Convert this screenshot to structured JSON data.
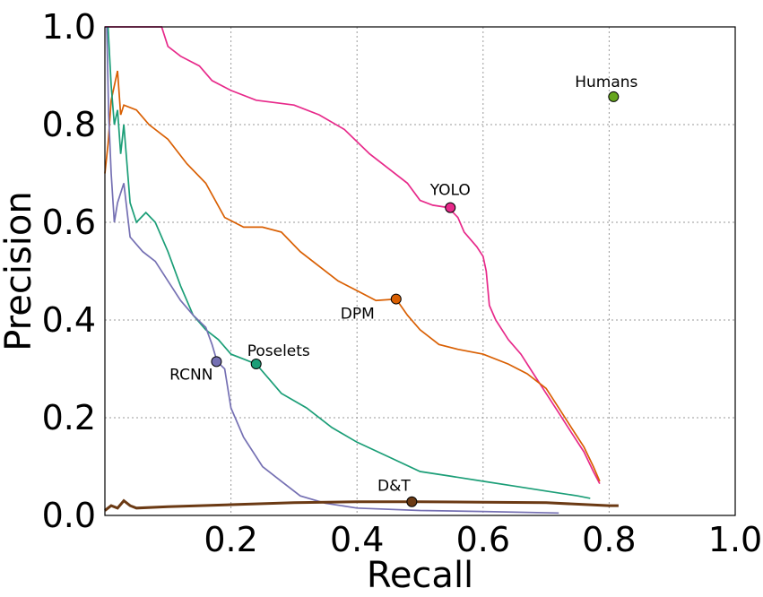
{
  "chart_data": {
    "type": "line",
    "xlabel": "Recall",
    "ylabel": "Precision",
    "xlim": [
      0,
      1
    ],
    "ylim": [
      0,
      1
    ],
    "grid": true,
    "x_ticks": [
      "0.2",
      "0.4",
      "0.6",
      "0.8",
      "1.0"
    ],
    "y_ticks": [
      "0.0",
      "0.2",
      "0.4",
      "0.6",
      "0.8",
      "1.0"
    ],
    "series": [
      {
        "name": "YOLO",
        "color": "#e7298a",
        "points": [
          [
            0.0,
            1.0
          ],
          [
            0.09,
            1.0
          ],
          [
            0.1,
            0.96
          ],
          [
            0.12,
            0.94
          ],
          [
            0.15,
            0.92
          ],
          [
            0.17,
            0.89
          ],
          [
            0.2,
            0.87
          ],
          [
            0.24,
            0.85
          ],
          [
            0.3,
            0.84
          ],
          [
            0.34,
            0.82
          ],
          [
            0.38,
            0.79
          ],
          [
            0.42,
            0.74
          ],
          [
            0.45,
            0.71
          ],
          [
            0.48,
            0.68
          ],
          [
            0.5,
            0.645
          ],
          [
            0.52,
            0.635
          ],
          [
            0.545,
            0.63
          ],
          [
            0.56,
            0.61
          ],
          [
            0.57,
            0.58
          ],
          [
            0.59,
            0.55
          ],
          [
            0.6,
            0.53
          ],
          [
            0.605,
            0.5
          ],
          [
            0.61,
            0.43
          ],
          [
            0.62,
            0.4
          ],
          [
            0.64,
            0.36
          ],
          [
            0.66,
            0.33
          ],
          [
            0.68,
            0.29
          ],
          [
            0.7,
            0.25
          ],
          [
            0.72,
            0.21
          ],
          [
            0.74,
            0.17
          ],
          [
            0.76,
            0.13
          ],
          [
            0.775,
            0.09
          ],
          [
            0.785,
            0.065
          ]
        ],
        "marker": {
          "x": 0.548,
          "y": 0.63,
          "label": "YOLO"
        }
      },
      {
        "name": "DPM",
        "color": "#d95f02",
        "points": [
          [
            0.0,
            0.7
          ],
          [
            0.005,
            0.76
          ],
          [
            0.01,
            0.85
          ],
          [
            0.02,
            0.91
          ],
          [
            0.025,
            0.82
          ],
          [
            0.03,
            0.84
          ],
          [
            0.05,
            0.83
          ],
          [
            0.07,
            0.8
          ],
          [
            0.1,
            0.77
          ],
          [
            0.13,
            0.72
          ],
          [
            0.16,
            0.68
          ],
          [
            0.19,
            0.61
          ],
          [
            0.22,
            0.59
          ],
          [
            0.25,
            0.59
          ],
          [
            0.28,
            0.58
          ],
          [
            0.31,
            0.54
          ],
          [
            0.34,
            0.51
          ],
          [
            0.37,
            0.48
          ],
          [
            0.4,
            0.46
          ],
          [
            0.43,
            0.44
          ],
          [
            0.462,
            0.443
          ],
          [
            0.48,
            0.41
          ],
          [
            0.5,
            0.38
          ],
          [
            0.53,
            0.35
          ],
          [
            0.56,
            0.34
          ],
          [
            0.6,
            0.33
          ],
          [
            0.64,
            0.31
          ],
          [
            0.67,
            0.29
          ],
          [
            0.7,
            0.26
          ],
          [
            0.72,
            0.22
          ],
          [
            0.74,
            0.18
          ],
          [
            0.76,
            0.14
          ],
          [
            0.775,
            0.1
          ],
          [
            0.785,
            0.07
          ]
        ],
        "marker": {
          "x": 0.462,
          "y": 0.443,
          "label": "DPM"
        }
      },
      {
        "name": "Poselets",
        "color": "#1b9e77",
        "points": [
          [
            0.005,
            1.0
          ],
          [
            0.01,
            0.88
          ],
          [
            0.015,
            0.8
          ],
          [
            0.02,
            0.83
          ],
          [
            0.025,
            0.74
          ],
          [
            0.03,
            0.8
          ],
          [
            0.035,
            0.72
          ],
          [
            0.04,
            0.64
          ],
          [
            0.05,
            0.6
          ],
          [
            0.065,
            0.62
          ],
          [
            0.08,
            0.6
          ],
          [
            0.1,
            0.54
          ],
          [
            0.12,
            0.47
          ],
          [
            0.14,
            0.41
          ],
          [
            0.16,
            0.38
          ],
          [
            0.18,
            0.36
          ],
          [
            0.2,
            0.33
          ],
          [
            0.22,
            0.32
          ],
          [
            0.24,
            0.31
          ],
          [
            0.26,
            0.28
          ],
          [
            0.28,
            0.25
          ],
          [
            0.32,
            0.22
          ],
          [
            0.36,
            0.18
          ],
          [
            0.4,
            0.15
          ],
          [
            0.45,
            0.12
          ],
          [
            0.5,
            0.09
          ],
          [
            0.55,
            0.08
          ],
          [
            0.6,
            0.07
          ],
          [
            0.65,
            0.06
          ],
          [
            0.7,
            0.05
          ],
          [
            0.75,
            0.04
          ],
          [
            0.77,
            0.035
          ]
        ],
        "marker": {
          "x": 0.24,
          "y": 0.31,
          "label": "Poselets"
        }
      },
      {
        "name": "RCNN",
        "color": "#7570b3",
        "points": [
          [
            0.003,
            1.0
          ],
          [
            0.006,
            0.82
          ],
          [
            0.01,
            0.7
          ],
          [
            0.015,
            0.6
          ],
          [
            0.02,
            0.64
          ],
          [
            0.03,
            0.68
          ],
          [
            0.04,
            0.57
          ],
          [
            0.06,
            0.54
          ],
          [
            0.08,
            0.52
          ],
          [
            0.1,
            0.48
          ],
          [
            0.12,
            0.44
          ],
          [
            0.14,
            0.41
          ],
          [
            0.16,
            0.385
          ],
          [
            0.17,
            0.35
          ],
          [
            0.178,
            0.315
          ],
          [
            0.19,
            0.3
          ],
          [
            0.2,
            0.22
          ],
          [
            0.22,
            0.16
          ],
          [
            0.25,
            0.1
          ],
          [
            0.28,
            0.07
          ],
          [
            0.31,
            0.04
          ],
          [
            0.35,
            0.025
          ],
          [
            0.4,
            0.015
          ],
          [
            0.5,
            0.01
          ],
          [
            0.6,
            0.008
          ],
          [
            0.72,
            0.005
          ]
        ],
        "marker": {
          "x": 0.177,
          "y": 0.315,
          "label": "RCNN"
        }
      },
      {
        "name": "D&T",
        "color": "#6b3a14",
        "points": [
          [
            0.0,
            0.01
          ],
          [
            0.01,
            0.02
          ],
          [
            0.02,
            0.015
          ],
          [
            0.03,
            0.03
          ],
          [
            0.04,
            0.02
          ],
          [
            0.05,
            0.015
          ],
          [
            0.1,
            0.018
          ],
          [
            0.2,
            0.022
          ],
          [
            0.3,
            0.026
          ],
          [
            0.4,
            0.028
          ],
          [
            0.5,
            0.028
          ],
          [
            0.6,
            0.027
          ],
          [
            0.7,
            0.026
          ],
          [
            0.8,
            0.02
          ],
          [
            0.815,
            0.02
          ]
        ],
        "marker": {
          "x": 0.487,
          "y": 0.028,
          "label": "D&T"
        }
      }
    ],
    "points": [
      {
        "name": "Humans",
        "color": "#66a61e",
        "x": 0.807,
        "y": 0.857,
        "label": "Humans"
      }
    ]
  }
}
